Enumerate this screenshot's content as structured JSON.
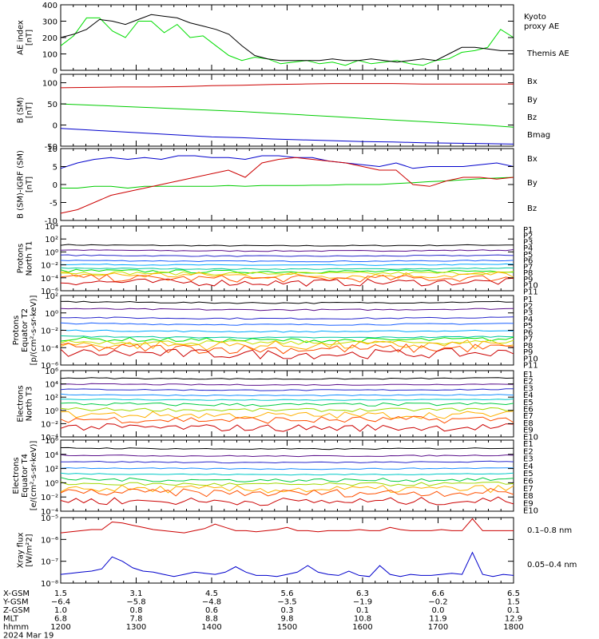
{
  "chart_data": [
    {
      "type": "line",
      "id": "ae",
      "ylabel": [
        "AE index",
        "[nT]"
      ],
      "ylim": [
        0,
        400
      ],
      "yticks": [
        0,
        100,
        200,
        300,
        400
      ],
      "series": [
        {
          "name": "Kyoto proxy AE",
          "label_lines": [
            "Kyoto",
            "proxy AE"
          ],
          "color": "#00dd00",
          "values": [
            150,
            210,
            320,
            320,
            240,
            200,
            300,
            300,
            230,
            280,
            200,
            210,
            150,
            90,
            60,
            80,
            70,
            40,
            50,
            60,
            40,
            50,
            30,
            60,
            40,
            50,
            60,
            40,
            30,
            60,
            70,
            110,
            120,
            140,
            250,
            200
          ]
        },
        {
          "name": "Themis AE",
          "label_lines": [
            "Themis AE"
          ],
          "color": "#000000",
          "values": [
            200,
            220,
            250,
            310,
            300,
            280,
            310,
            340,
            330,
            320,
            290,
            270,
            250,
            220,
            150,
            90,
            70,
            60,
            60,
            60,
            60,
            70,
            60,
            60,
            70,
            60,
            50,
            60,
            70,
            60,
            100,
            140,
            140,
            130,
            120,
            120
          ]
        }
      ]
    },
    {
      "type": "line",
      "id": "bsm",
      "ylabel": [
        "B (SM)",
        "[nT]"
      ],
      "ylim": [
        -50,
        120
      ],
      "yticks": [
        -50,
        0,
        50,
        100
      ],
      "series": [
        {
          "name": "Bx",
          "color": "#0000cc",
          "values": [
            -8,
            -12,
            -16,
            -20,
            -24,
            -28,
            -30,
            -33,
            -35,
            -37,
            -39,
            -40,
            -42,
            -43,
            -44,
            -45
          ]
        },
        {
          "name": "By",
          "color": "#00cc00",
          "values": [
            50,
            47,
            44,
            41,
            38,
            35,
            32,
            28,
            24,
            20,
            16,
            12,
            8,
            4,
            0,
            -5
          ]
        },
        {
          "name": "Bz",
          "color": "#cc0000",
          "values": [
            88,
            89,
            90,
            90,
            91,
            93,
            94,
            96,
            97,
            98,
            98,
            98,
            97,
            97,
            97,
            97
          ]
        },
        {
          "name": "Bmag",
          "color": "#000000",
          "values": []
        }
      ]
    },
    {
      "type": "line",
      "id": "bsmigrf",
      "ylabel": [
        "B (SM)-IGRF (SM)",
        "[nT]"
      ],
      "ylim": [
        -10,
        10
      ],
      "yticks": [
        -10,
        -5,
        0,
        5,
        10
      ],
      "series": [
        {
          "name": "Bx",
          "color": "#0000cc",
          "values": [
            4.5,
            6,
            7,
            7.5,
            7,
            7.5,
            7,
            8,
            8,
            7.5,
            7.5,
            7,
            8,
            8,
            7.5,
            7.5,
            6.5,
            6,
            5.5,
            5,
            6,
            4.5,
            5,
            5,
            5,
            5.5,
            6,
            5
          ]
        },
        {
          "name": "By",
          "color": "#00cc00",
          "values": [
            -1,
            -1,
            -0.5,
            -0.5,
            -1,
            -0.5,
            -0.5,
            -0.5,
            -0.5,
            -0.5,
            -0.3,
            -0.5,
            -0.3,
            -0.3,
            -0.3,
            -0.2,
            -0.2,
            0,
            0,
            0,
            0.3,
            0.5,
            0.8,
            1,
            1.3,
            1.6,
            1.8,
            2
          ]
        },
        {
          "name": "Bz",
          "color": "#cc0000",
          "values": [
            -8,
            -7,
            -5,
            -3,
            -2,
            -1,
            0,
            1,
            2,
            3,
            4,
            2,
            6,
            7,
            7.5,
            7,
            6.5,
            6,
            5,
            4,
            4,
            0,
            -0.5,
            1,
            2,
            2,
            1.5,
            2
          ]
        }
      ]
    },
    {
      "type": "line",
      "id": "protons-north",
      "log": true,
      "ylabel": [
        "Protons",
        "North T1"
      ],
      "ylim": [
        -6,
        4
      ],
      "ytick_labels": [
        "10⁴",
        "10²",
        "10⁰",
        "10⁻²",
        "10⁻⁴",
        "10⁻⁶"
      ],
      "channels": [
        {
          "name": "P1",
          "color": "#000000",
          "level": 1.1
        },
        {
          "name": "P2",
          "color": "#5a0f8a",
          "level": 0.3
        },
        {
          "name": "P3",
          "color": "#2828cc",
          "level": -0.5
        },
        {
          "name": "P4",
          "color": "#1a60ff",
          "level": -1.3
        },
        {
          "name": "P5",
          "color": "#00a8ff",
          "level": -1.9
        },
        {
          "name": "P6",
          "color": "#00c8a0",
          "level": -2.5
        },
        {
          "name": "P7",
          "color": "#00e000",
          "level": -2.9
        },
        {
          "name": "P8",
          "color": "#c8e000",
          "level": -3.2
        },
        {
          "name": "P9",
          "color": "#ffb000",
          "level": -3.5
        },
        {
          "name": "P10",
          "color": "#ff5000",
          "level": -4.0
        },
        {
          "name": "P11",
          "color": "#cc0000",
          "level": -4.6
        }
      ]
    },
    {
      "type": "line",
      "id": "protons-equator",
      "log": true,
      "ylabel": [
        "Protons",
        "Equator T2",
        "[p/(cm²-s-sr-keV)]"
      ],
      "ylim": [
        -6,
        2
      ],
      "ytick_labels": [
        "10²",
        "10⁰",
        "10⁻²",
        "10⁻⁴",
        "10⁻⁶"
      ],
      "channels": [
        {
          "name": "P1",
          "color": "#000000",
          "level": 1.3
        },
        {
          "name": "P2",
          "color": "#5a0f8a",
          "level": 0.5
        },
        {
          "name": "P3",
          "color": "#2828cc",
          "level": -0.5
        },
        {
          "name": "P4",
          "color": "#1a60ff",
          "level": -1.2
        },
        {
          "name": "P5",
          "color": "#00a8ff",
          "level": -2.0
        },
        {
          "name": "P6",
          "color": "#00c8a0",
          "level": -2.7
        },
        {
          "name": "P7",
          "color": "#00e000",
          "level": -3.0
        },
        {
          "name": "P8",
          "color": "#c8e000",
          "level": -3.3
        },
        {
          "name": "P9",
          "color": "#ffb000",
          "level": -3.6
        },
        {
          "name": "P10",
          "color": "#ff5000",
          "level": -4.0
        },
        {
          "name": "P11",
          "color": "#cc0000",
          "level": -4.6
        }
      ]
    },
    {
      "type": "line",
      "id": "electrons-north",
      "log": true,
      "ylabel": [
        "Electrons",
        "North T3"
      ],
      "ylim": [
        -4,
        6
      ],
      "ytick_labels": [
        "10⁶",
        "10⁴",
        "10²",
        "10⁰",
        "10⁻²",
        "10⁻⁴"
      ],
      "channels": [
        {
          "name": "E1",
          "color": "#000000",
          "level": 4.9
        },
        {
          "name": "E2",
          "color": "#5a0f8a",
          "level": 4.0
        },
        {
          "name": "E3",
          "color": "#2828cc",
          "level": 3.2
        },
        {
          "name": "E4",
          "color": "#1a90ff",
          "level": 2.4
        },
        {
          "name": "E5",
          "color": "#00c8c8",
          "level": 1.7
        },
        {
          "name": "E6",
          "color": "#00cc44",
          "level": 1.0
        },
        {
          "name": "E7",
          "color": "#a0d800",
          "level": 0.2
        },
        {
          "name": "E8",
          "color": "#ffb000",
          "level": -0.6
        },
        {
          "name": "E9",
          "color": "#ff5000",
          "level": -1.3
        },
        {
          "name": "E10",
          "color": "#cc0000",
          "level": -2.5
        }
      ]
    },
    {
      "type": "line",
      "id": "electrons-equator",
      "log": true,
      "ylabel": [
        "Electrons",
        "Equator T4",
        "[e/(cm²-s-sr-keV)]"
      ],
      "ylim": [
        -4,
        6
      ],
      "ytick_labels": [
        "10⁶",
        "10⁴",
        "10²",
        "10⁰",
        "10⁻²",
        "10⁻⁴"
      ],
      "channels": [
        {
          "name": "E1",
          "color": "#000000",
          "level": 4.9
        },
        {
          "name": "E2",
          "color": "#5a0f8a",
          "level": 3.9
        },
        {
          "name": "E3",
          "color": "#2828cc",
          "level": 3.0
        },
        {
          "name": "E4",
          "color": "#1a90ff",
          "level": 2.1
        },
        {
          "name": "E5",
          "color": "#00c8c8",
          "level": 1.3
        },
        {
          "name": "E6",
          "color": "#00cc44",
          "level": 0.5
        },
        {
          "name": "E7",
          "color": "#a0d800",
          "level": -0.1
        },
        {
          "name": "E8",
          "color": "#ffb000",
          "level": -0.8
        },
        {
          "name": "E9",
          "color": "#ff5000",
          "level": -1.3
        },
        {
          "name": "E10",
          "color": "#cc0000",
          "level": -2.5
        }
      ]
    },
    {
      "type": "line",
      "id": "xray",
      "log": true,
      "ylabel": [
        "Xray flux",
        "[W/m²2]"
      ],
      "ylim": [
        -8,
        -5
      ],
      "ytick_labels": [
        "10⁻⁵",
        "10⁻⁶",
        "10⁻⁷",
        "10⁻⁸"
      ],
      "series": [
        {
          "name": "0.1–0.8 nm",
          "color": "#cc0000",
          "values": [
            -5.7,
            -5.65,
            -5.6,
            -5.55,
            -5.55,
            -5.2,
            -5.25,
            -5.35,
            -5.45,
            -5.55,
            -5.6,
            -5.65,
            -5.7,
            -5.6,
            -5.5,
            -5.3,
            -5.45,
            -5.6,
            -5.6,
            -5.65,
            -5.6,
            -5.55,
            -5.45,
            -5.6,
            -5.6,
            -5.65,
            -5.6,
            -5.6,
            -5.6,
            -5.55,
            -5.6,
            -5.6,
            -5.45,
            -5.55,
            -5.6,
            -5.6,
            -5.6,
            -5.55,
            -5.6,
            -5.6,
            -5.05,
            -5.6,
            -5.6,
            -5.6,
            -5.6
          ]
        },
        {
          "name": "0.05–0.4 nm",
          "color": "#0000cc",
          "values": [
            -7.6,
            -7.55,
            -7.5,
            -7.45,
            -7.35,
            -6.8,
            -7.0,
            -7.3,
            -7.45,
            -7.5,
            -7.6,
            -7.7,
            -7.6,
            -7.5,
            -7.55,
            -7.6,
            -7.5,
            -7.25,
            -7.5,
            -7.65,
            -7.65,
            -7.7,
            -7.6,
            -7.5,
            -7.2,
            -7.5,
            -7.6,
            -7.65,
            -7.45,
            -7.65,
            -7.7,
            -7.2,
            -7.6,
            -7.7,
            -7.6,
            -7.65,
            -7.65,
            -7.6,
            -7.55,
            -7.6,
            -6.6,
            -7.6,
            -7.7,
            -7.6,
            -7.65
          ]
        }
      ]
    }
  ],
  "orbit": {
    "rows": [
      {
        "label": "X-GSM",
        "values": [
          "1.5",
          "3.1",
          "4.5",
          "5.6",
          "6.3",
          "6.6",
          "6.5"
        ]
      },
      {
        "label": "Y-GSM",
        "values": [
          "−6.4",
          "−5.8",
          "−4.8",
          "−3.5",
          "−1.9",
          "−0.2",
          "1.5"
        ]
      },
      {
        "label": "Z-GSM",
        "values": [
          "1.0",
          "0.8",
          "0.6",
          "0.3",
          "0.1",
          "0.0",
          "0.1"
        ]
      },
      {
        "label": "MLT",
        "values": [
          "6.8",
          "7.8",
          "8.8",
          "9.8",
          "10.8",
          "11.9",
          "12.9"
        ]
      },
      {
        "label": "hhmm",
        "values": [
          "1200",
          "1300",
          "1400",
          "1500",
          "1600",
          "1700",
          "1800"
        ]
      }
    ],
    "date": "2024 Mar 19"
  }
}
